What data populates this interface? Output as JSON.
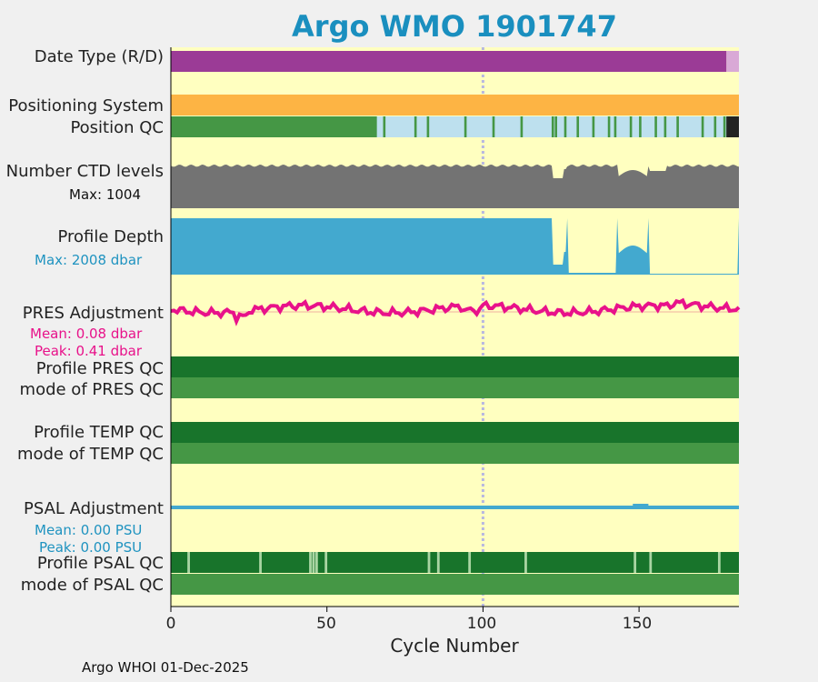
{
  "title": "Argo WMO 1901747",
  "footer": "Argo WHOI 01-Dec-2025",
  "chart_data": {
    "type": "timeline",
    "xlabel": "Cycle Number",
    "xlim": [
      0,
      182
    ],
    "xticks": [
      "0",
      "50",
      "100",
      "150"
    ],
    "rows": {
      "date_type": {
        "label": "Date Type (R/D)",
        "segments": [
          {
            "from": 0,
            "to": 178,
            "value": "D",
            "color": "#9b3b96"
          },
          {
            "from": 178,
            "to": 182,
            "value": "R",
            "color": "#d9a9d6"
          }
        ]
      },
      "positioning_system": {
        "label": "Positioning System",
        "color": "#fdb444"
      },
      "position_qc": {
        "label": "Position QC",
        "base_color": "#bde0ee",
        "good_color": "#459745",
        "bad_color": "#222222",
        "good_until": 66
      },
      "ctd_levels": {
        "label": "Number CTD levels",
        "max_label": "Max: 1004",
        "max": 1004,
        "color": "#737373"
      },
      "profile_depth": {
        "label": "Profile Depth",
        "max_label": "Max: 2008 dbar",
        "max": 2008,
        "color": "#43a9cf"
      },
      "pres_adjustment": {
        "label": "PRES Adjustment",
        "mean_label": "Mean: 0.08 dbar",
        "peak_label": "Peak: 0.41 dbar",
        "mean": 0.08,
        "peak": 0.41,
        "color": "#e8128a"
      },
      "profile_pres_qc": {
        "label": "Profile PRES QC",
        "color": "#18742b"
      },
      "mode_pres_qc": {
        "label": "mode of PRES QC",
        "color": "#459745"
      },
      "profile_temp_qc": {
        "label": "Profile TEMP QC",
        "color": "#18742b"
      },
      "mode_temp_qc": {
        "label": "mode of TEMP QC",
        "color": "#459745"
      },
      "psal_adjustment": {
        "label": "PSAL Adjustment",
        "mean_label": "Mean: 0.00 PSU",
        "peak_label": "Peak: 0.00 PSU",
        "mean": 0.0,
        "peak": 0.0,
        "color": "#43a9cf"
      },
      "profile_psal_qc": {
        "label": "Profile PSAL QC",
        "color": "#18742b",
        "gap_color": "#a9d5a3",
        "gaps": [
          5,
          28,
          44,
          45,
          46,
          49,
          82,
          85,
          95,
          113,
          148,
          153,
          175
        ]
      },
      "mode_psal_qc": {
        "label": "mode of PSAL QC",
        "color": "#459745"
      }
    }
  }
}
